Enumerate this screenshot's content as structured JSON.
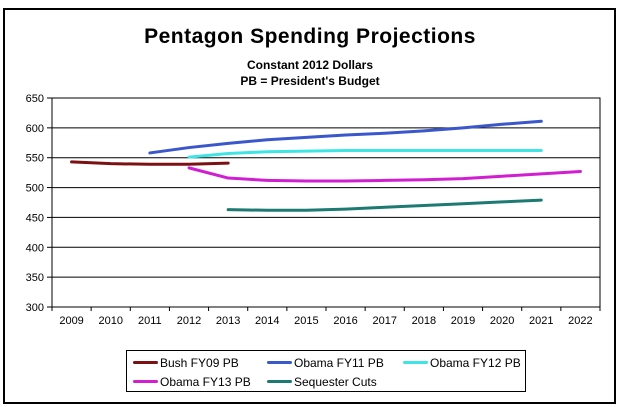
{
  "chart": {
    "title": "Pentagon Spending Projections",
    "subtitle_line1": "Constant 2012 Dollars",
    "subtitle_line2": "PB = President's Budget"
  },
  "chart_data": {
    "type": "line",
    "title": "Pentagon Spending Projections",
    "subtitle": "Constant 2012 Dollars; PB = President's Budget",
    "xlabel": "",
    "ylabel": "",
    "categories": [
      "2009",
      "2010",
      "2011",
      "2012",
      "2013",
      "2014",
      "2015",
      "2016",
      "2017",
      "2018",
      "2019",
      "2020",
      "2021",
      "2022"
    ],
    "ylim": [
      300,
      650
    ],
    "yticks": [
      300,
      350,
      400,
      450,
      500,
      550,
      600,
      650
    ],
    "grid": true,
    "legend_position": "bottom",
    "axis_color": "#000000",
    "series": [
      {
        "name": "Bush FY09 PB",
        "color": "#7b1113",
        "start_index": 0,
        "values": [
          543,
          540,
          539,
          539,
          541
        ]
      },
      {
        "name": "Obama FY11 PB",
        "color": "#3a57cb",
        "start_index": 2,
        "values": [
          558,
          567,
          574,
          580,
          584,
          588,
          591,
          595,
          600,
          606,
          611
        ]
      },
      {
        "name": "Obama FY12 PB",
        "color": "#3fe5e5",
        "start_index": 3,
        "values": [
          551,
          557,
          560,
          561,
          562,
          562,
          562,
          562,
          562,
          562
        ]
      },
      {
        "name": "Obama FY13 PB",
        "color": "#d11ed1",
        "start_index": 3,
        "values": [
          533,
          516,
          512,
          511,
          511,
          512,
          513,
          515,
          519,
          523,
          527
        ]
      },
      {
        "name": "Sequester Cuts",
        "color": "#1d7a72",
        "start_index": 4,
        "values": [
          463,
          462,
          462,
          464,
          467,
          470,
          473,
          476,
          479
        ]
      }
    ]
  }
}
